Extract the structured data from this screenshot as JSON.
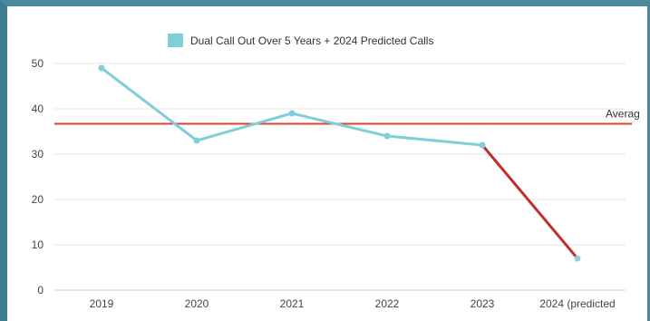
{
  "chart_data": {
    "type": "line",
    "categories": [
      "2019",
      "2020",
      "2021",
      "2022",
      "2023",
      "2024 (predicted"
    ],
    "series": [
      {
        "name": "Dual Call Out Over 5 Years + 2024 Predicted Calls",
        "values": [
          49,
          33,
          39,
          34,
          32,
          7
        ],
        "color": "#7ecfd6"
      }
    ],
    "prediction_segment": {
      "from_index": 4,
      "to_index": 5,
      "color": "#c0302a"
    },
    "average": {
      "value": 36.7,
      "label": "Averag",
      "color": "#d9432f"
    },
    "ylim": [
      0,
      52
    ],
    "yticks": [
      0,
      10,
      20,
      30,
      40,
      50
    ],
    "grid": true,
    "legend_position": "top-center",
    "title": "",
    "xlabel": "",
    "ylabel": ""
  }
}
